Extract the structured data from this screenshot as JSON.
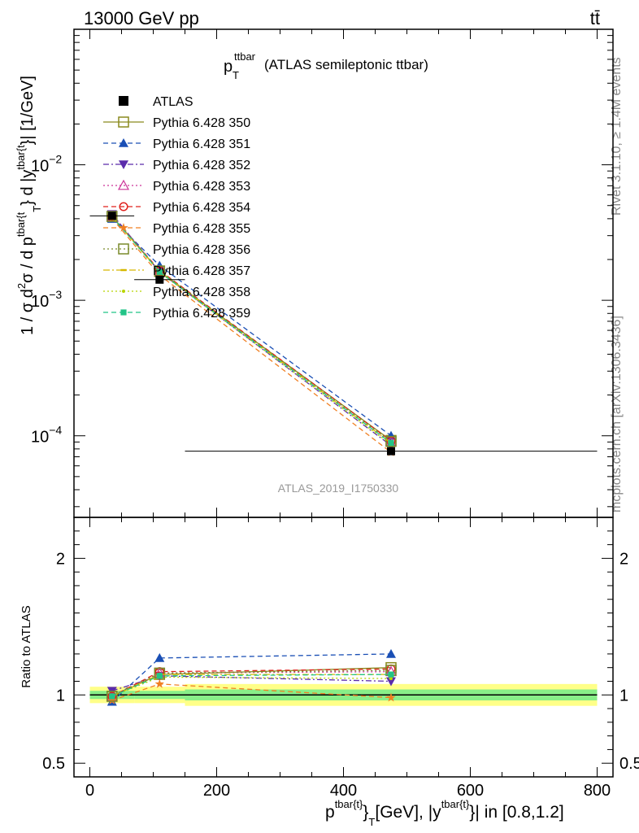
{
  "header": {
    "left": "13000 GeV pp",
    "right": "tt̄"
  },
  "side_labels": {
    "rivet": "Rivet 3.1.10, ≥ 1.4M events",
    "mcplots": "mcplots.cern.ch [arXiv:1306.3436]"
  },
  "chart_data": {
    "type": "line",
    "title": {
      "main": "p",
      "main_sub": "T",
      "main_sup": "ttbar",
      "rest": "(ATLAS semileptonic ttbar)"
    },
    "watermark": "ATLAS_2019_I1750330",
    "ylabel": "1 / σ d²σ / d p^{tbar{t}}_T d |y^{tbar{t}}| [1/GeV]",
    "ylabel_parts": {
      "a": "1 / σ d",
      "a_sup": "2",
      "b": "σ / d p",
      "b_sup": "tbar{t",
      "b_sub": "T",
      "c": "} d |y",
      "c_sup": "tbar{t",
      "d": "}| [1/GeV]"
    },
    "xlabel": "p^{tbar{t}}_T [GeV], |y^{tbar{t}}| in [0.8,1.2]",
    "xlabel_parts": {
      "a": "p",
      "a_sup": "tbar{t}",
      "b": "}",
      "b_sub": "T",
      "c": "[GeV], |y",
      "c_sup": "tbar{t}",
      "d": "}| in [0.8,1.2]"
    },
    "ratio_ylabel": "Ratio to ATLAS",
    "xlim": [
      -25,
      825
    ],
    "ylim_main": [
      2.5e-05,
      0.1
    ],
    "ylim_ratio": [
      0.4,
      2.3
    ],
    "yscale_main": "log",
    "x_ticks": [
      0,
      200,
      400,
      600,
      800
    ],
    "x_tick_labels": [
      "0",
      "200",
      "400",
      "600",
      "800"
    ],
    "y_ticks_main_labels": [
      {
        "value": 0.01,
        "base": "10",
        "exp": "−2"
      },
      {
        "value": 0.001,
        "base": "10",
        "exp": "−3"
      },
      {
        "value": 0.0001,
        "base": "10",
        "exp": "−4"
      }
    ],
    "y_ticks_ratio": [
      {
        "value": 0.5,
        "label": "0.5"
      },
      {
        "value": 1,
        "label": "1"
      },
      {
        "value": 2,
        "label": "2"
      }
    ],
    "bins": [
      {
        "lo": 0,
        "hi": 70,
        "center": 35
      },
      {
        "lo": 70,
        "hi": 150,
        "center": 110
      },
      {
        "lo": 150,
        "hi": 800,
        "center": 475
      }
    ],
    "data": {
      "name": "ATLAS",
      "values": [
        0.0042,
        0.00142,
        7.7e-05
      ],
      "band_inner": [
        0.03,
        0.03,
        0.04
      ],
      "band_outer": [
        0.06,
        0.06,
        0.08
      ]
    },
    "series": [
      {
        "name": "Pythia 6.428 350",
        "color": "#8a8a1e",
        "dash": "",
        "marker": "square-open",
        "ratio": [
          0.99,
          1.15,
          1.2
        ]
      },
      {
        "name": "Pythia 6.428 351",
        "color": "#1a4fb5",
        "dash": "6,4",
        "marker": "triangle-up",
        "ratio": [
          0.95,
          1.27,
          1.3
        ]
      },
      {
        "name": "Pythia 6.428 352",
        "color": "#5a2bab",
        "dash": "7,3,2,3",
        "marker": "triangle-down",
        "ratio": [
          1.03,
          1.14,
          1.1
        ]
      },
      {
        "name": "Pythia 6.428 353",
        "color": "#cc3399",
        "dash": "2,3",
        "marker": "triangle-open",
        "ratio": [
          0.99,
          1.16,
          1.17
        ]
      },
      {
        "name": "Pythia 6.428 354",
        "color": "#e0201c",
        "dash": "6,4",
        "marker": "circle-open",
        "ratio": [
          0.99,
          1.17,
          1.19
        ]
      },
      {
        "name": "Pythia 6.428 355",
        "color": "#f07f22",
        "dash": "6,4",
        "marker": "star",
        "ratio": [
          0.96,
          1.08,
          0.98
        ]
      },
      {
        "name": "Pythia 6.428 356",
        "color": "#7a8a2a",
        "dash": "2,3",
        "marker": "square-open",
        "ratio": [
          0.99,
          1.16,
          1.18
        ]
      },
      {
        "name": "Pythia 6.428 357",
        "color": "#d6b800",
        "dash": "8,3,2,3",
        "marker": "dash",
        "ratio": [
          0.99,
          1.15,
          1.15
        ]
      },
      {
        "name": "Pythia 6.428 358",
        "color": "#b8d400",
        "dash": "2,3",
        "marker": "dot",
        "ratio": [
          0.99,
          1.13,
          1.12
        ]
      },
      {
        "name": "Pythia 6.428 359",
        "color": "#22c487",
        "dash": "6,4",
        "marker": "square-filled",
        "ratio": [
          0.99,
          1.14,
          1.15
        ]
      }
    ],
    "legend_position": "top-left"
  }
}
